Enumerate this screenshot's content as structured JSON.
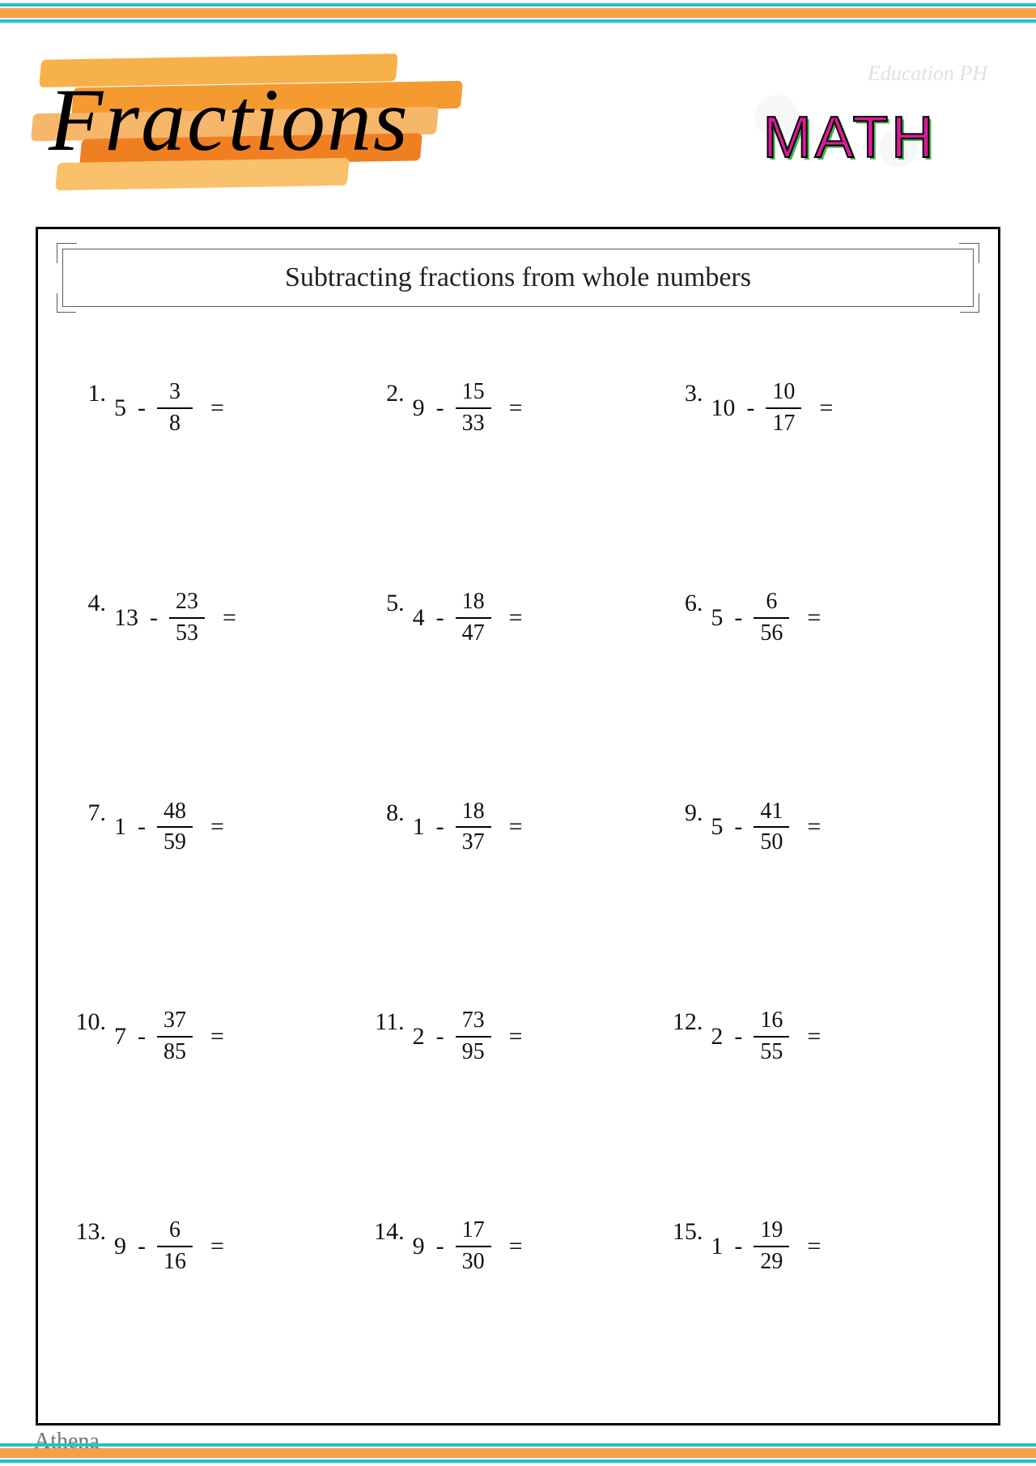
{
  "header": {
    "title": "Fractions",
    "badge_text": "MATH",
    "watermark": "Education PH",
    "brush_colors": [
      "#f7b14a",
      "#f59a2e",
      "#f7b76a",
      "#f07f22",
      "#f9c16b"
    ]
  },
  "worksheet": {
    "subtitle": "Subtracting fractions from whole numbers",
    "columns": 3,
    "rows": 5,
    "number_fontsize": 30,
    "fraction_fontsize": 28,
    "border_color": "#000000",
    "problems": [
      {
        "n": "1.",
        "whole": "5",
        "num": "3",
        "den": "8"
      },
      {
        "n": "2.",
        "whole": "9",
        "num": "15",
        "den": "33"
      },
      {
        "n": "3.",
        "whole": "10",
        "num": "10",
        "den": "17"
      },
      {
        "n": "4.",
        "whole": "13",
        "num": "23",
        "den": "53"
      },
      {
        "n": "5.",
        "whole": "4",
        "num": "18",
        "den": "47"
      },
      {
        "n": "6.",
        "whole": "5",
        "num": "6",
        "den": "56"
      },
      {
        "n": "7.",
        "whole": "1",
        "num": "48",
        "den": "59"
      },
      {
        "n": "8.",
        "whole": "1",
        "num": "18",
        "den": "37"
      },
      {
        "n": "9.",
        "whole": "5",
        "num": "41",
        "den": "50"
      },
      {
        "n": "10.",
        "whole": "7",
        "num": "37",
        "den": "85"
      },
      {
        "n": "11.",
        "whole": "2",
        "num": "73",
        "den": "95"
      },
      {
        "n": "12.",
        "whole": "2",
        "num": "16",
        "den": "55"
      },
      {
        "n": "13.",
        "whole": "9",
        "num": "6",
        "den": "16"
      },
      {
        "n": "14.",
        "whole": "9",
        "num": "17",
        "den": "30"
      },
      {
        "n": "15.",
        "whole": "1",
        "num": "19",
        "den": "29"
      }
    ]
  },
  "footer": {
    "signature": "Athena"
  },
  "colors": {
    "teal": "#1fc4c4",
    "orange": "#f5a146",
    "pink": "#d81b9a",
    "green_shadow": "#3fb54a",
    "text": "#111111",
    "background": "#ffffff"
  }
}
